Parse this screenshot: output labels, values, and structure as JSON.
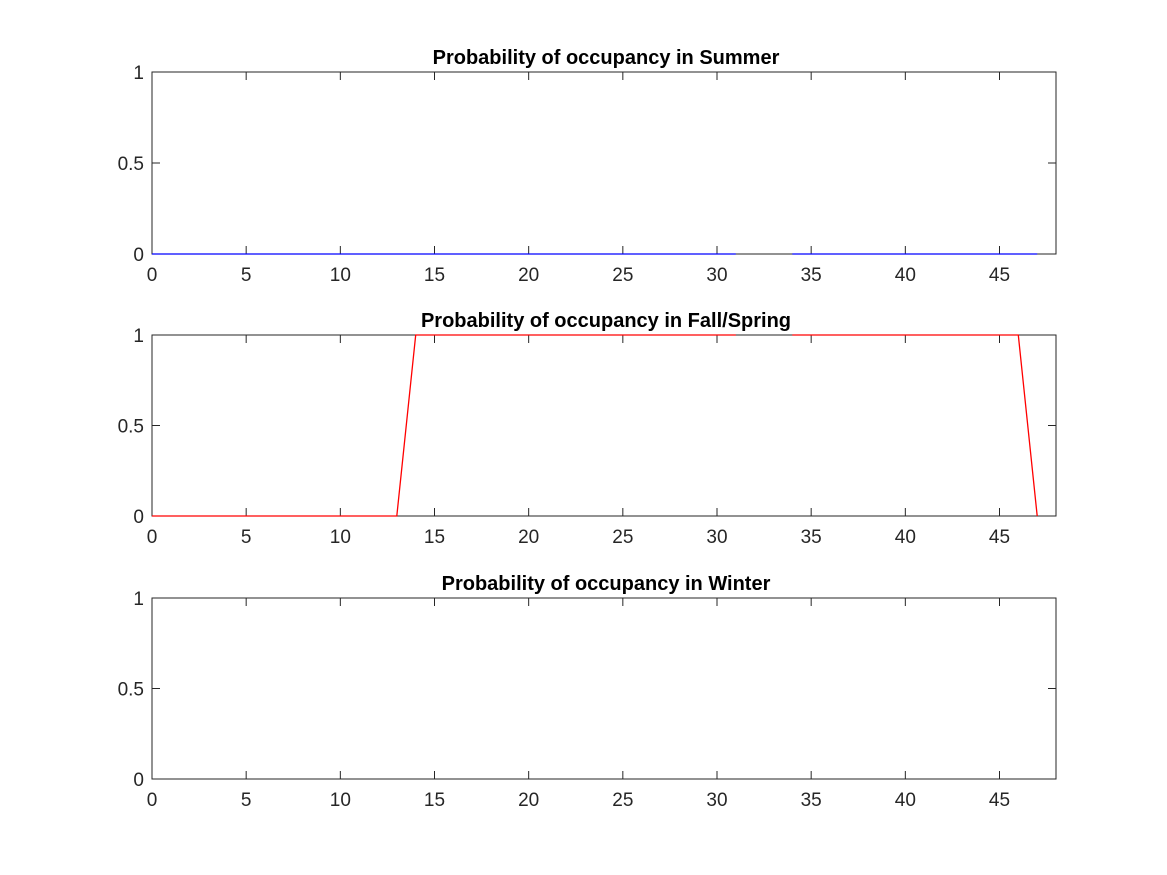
{
  "chart_data": [
    {
      "type": "line",
      "title": "Probability of occupancy in Summer",
      "xlabel": "",
      "ylabel": "",
      "xlim": [
        0,
        48
      ],
      "ylim": [
        0,
        1
      ],
      "xticks": [
        0,
        5,
        10,
        15,
        20,
        25,
        30,
        35,
        40,
        45
      ],
      "yticks": [
        0,
        0.5,
        1
      ],
      "grid": false,
      "series": [
        {
          "color": "#0000ff",
          "segments": [
            {
              "x": [
                0,
                31
              ],
              "y": [
                0,
                0
              ]
            },
            {
              "x": [
                34,
                47
              ],
              "y": [
                0,
                0
              ]
            }
          ]
        }
      ]
    },
    {
      "type": "line",
      "title": "Probability of occupancy in Fall/Spring",
      "xlabel": "",
      "ylabel": "",
      "xlim": [
        0,
        48
      ],
      "ylim": [
        0,
        1
      ],
      "xticks": [
        0,
        5,
        10,
        15,
        20,
        25,
        30,
        35,
        40,
        45
      ],
      "yticks": [
        0,
        0.5,
        1
      ],
      "grid": false,
      "series": [
        {
          "color": "#ff0000",
          "segments": [
            {
              "x": [
                0,
                13,
                14,
                31
              ],
              "y": [
                0,
                0,
                1,
                1
              ]
            },
            {
              "x": [
                34,
                46,
                47
              ],
              "y": [
                1,
                1,
                0
              ]
            }
          ]
        }
      ]
    },
    {
      "type": "line",
      "title": "Probability of occupancy in Winter",
      "xlabel": "",
      "ylabel": "",
      "xlim": [
        0,
        48
      ],
      "ylim": [
        0,
        1
      ],
      "xticks": [
        0,
        5,
        10,
        15,
        20,
        25,
        30,
        35,
        40,
        45
      ],
      "yticks": [
        0,
        0.5,
        1
      ],
      "grid": false,
      "series": []
    }
  ]
}
